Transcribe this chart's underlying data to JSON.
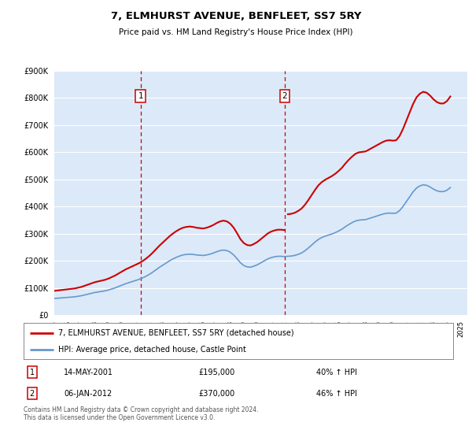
{
  "title": "7, ELMHURST AVENUE, BENFLEET, SS7 5RY",
  "subtitle": "Price paid vs. HM Land Registry's House Price Index (HPI)",
  "legend_line1": "7, ELMHURST AVENUE, BENFLEET, SS7 5RY (detached house)",
  "legend_line2": "HPI: Average price, detached house, Castle Point",
  "annotation1_label": "1",
  "annotation1_date": "14-MAY-2001",
  "annotation1_price": "£195,000",
  "annotation1_pct": "40% ↑ HPI",
  "annotation1_year": 2001.37,
  "annotation1_value": 195000,
  "annotation2_label": "2",
  "annotation2_date": "06-JAN-2012",
  "annotation2_price": "£370,000",
  "annotation2_pct": "46% ↑ HPI",
  "annotation2_year": 2012.02,
  "annotation2_value": 370000,
  "ylim": [
    0,
    900000
  ],
  "yticks": [
    0,
    100000,
    200000,
    300000,
    400000,
    500000,
    600000,
    700000,
    800000,
    900000
  ],
  "background_color": "#dce9f8",
  "red_line_color": "#cc0000",
  "blue_line_color": "#6699cc",
  "grid_color": "#ffffff",
  "footer_text": "Contains HM Land Registry data © Crown copyright and database right 2024.\nThis data is licensed under the Open Government Licence v3.0.",
  "hpi_data_years": [
    1995,
    1995.25,
    1995.5,
    1995.75,
    1996,
    1996.25,
    1996.5,
    1996.75,
    1997,
    1997.25,
    1997.5,
    1997.75,
    1998,
    1998.25,
    1998.5,
    1998.75,
    1999,
    1999.25,
    1999.5,
    1999.75,
    2000,
    2000.25,
    2000.5,
    2000.75,
    2001,
    2001.25,
    2001.5,
    2001.75,
    2002,
    2002.25,
    2002.5,
    2002.75,
    2003,
    2003.25,
    2003.5,
    2003.75,
    2004,
    2004.25,
    2004.5,
    2004.75,
    2005,
    2005.25,
    2005.5,
    2005.75,
    2006,
    2006.25,
    2006.5,
    2006.75,
    2007,
    2007.25,
    2007.5,
    2007.75,
    2008,
    2008.25,
    2008.5,
    2008.75,
    2009,
    2009.25,
    2009.5,
    2009.75,
    2010,
    2010.25,
    2010.5,
    2010.75,
    2011,
    2011.25,
    2011.5,
    2011.75,
    2012,
    2012.25,
    2012.5,
    2012.75,
    2013,
    2013.25,
    2013.5,
    2013.75,
    2014,
    2014.25,
    2014.5,
    2014.75,
    2015,
    2015.25,
    2015.5,
    2015.75,
    2016,
    2016.25,
    2016.5,
    2016.75,
    2017,
    2017.25,
    2017.5,
    2017.75,
    2018,
    2018.25,
    2018.5,
    2018.75,
    2019,
    2019.25,
    2019.5,
    2019.75,
    2020,
    2020.25,
    2020.5,
    2020.75,
    2021,
    2021.25,
    2021.5,
    2021.75,
    2022,
    2022.25,
    2022.5,
    2022.75,
    2023,
    2023.25,
    2023.5,
    2023.75,
    2024,
    2024.25
  ],
  "hpi_values": [
    62000,
    63000,
    64000,
    65000,
    66000,
    67000,
    68000,
    70000,
    72000,
    75000,
    78000,
    81000,
    84000,
    86000,
    88000,
    90000,
    93000,
    97000,
    101000,
    106000,
    111000,
    116000,
    120000,
    124000,
    128000,
    132000,
    137000,
    143000,
    150000,
    158000,
    167000,
    176000,
    184000,
    192000,
    200000,
    207000,
    213000,
    218000,
    222000,
    224000,
    225000,
    224000,
    222000,
    221000,
    220000,
    222000,
    225000,
    229000,
    234000,
    238000,
    240000,
    238000,
    232000,
    222000,
    208000,
    193000,
    183000,
    178000,
    177000,
    181000,
    186000,
    193000,
    200000,
    207000,
    212000,
    215000,
    217000,
    217000,
    216000,
    217000,
    218000,
    220000,
    224000,
    229000,
    237000,
    247000,
    258000,
    269000,
    279000,
    286000,
    291000,
    295000,
    299000,
    304000,
    310000,
    317000,
    326000,
    334000,
    341000,
    347000,
    350000,
    351000,
    352000,
    356000,
    360000,
    364000,
    368000,
    372000,
    375000,
    376000,
    375000,
    376000,
    385000,
    400000,
    418000,
    436000,
    454000,
    468000,
    476000,
    480000,
    478000,
    472000,
    464000,
    458000,
    455000,
    455000,
    460000,
    470000
  ],
  "price_paid_years": [
    2001.37,
    2012.02
  ],
  "price_paid_values": [
    195000,
    370000
  ],
  "xlim_start": 1995,
  "xlim_end": 2025.5
}
